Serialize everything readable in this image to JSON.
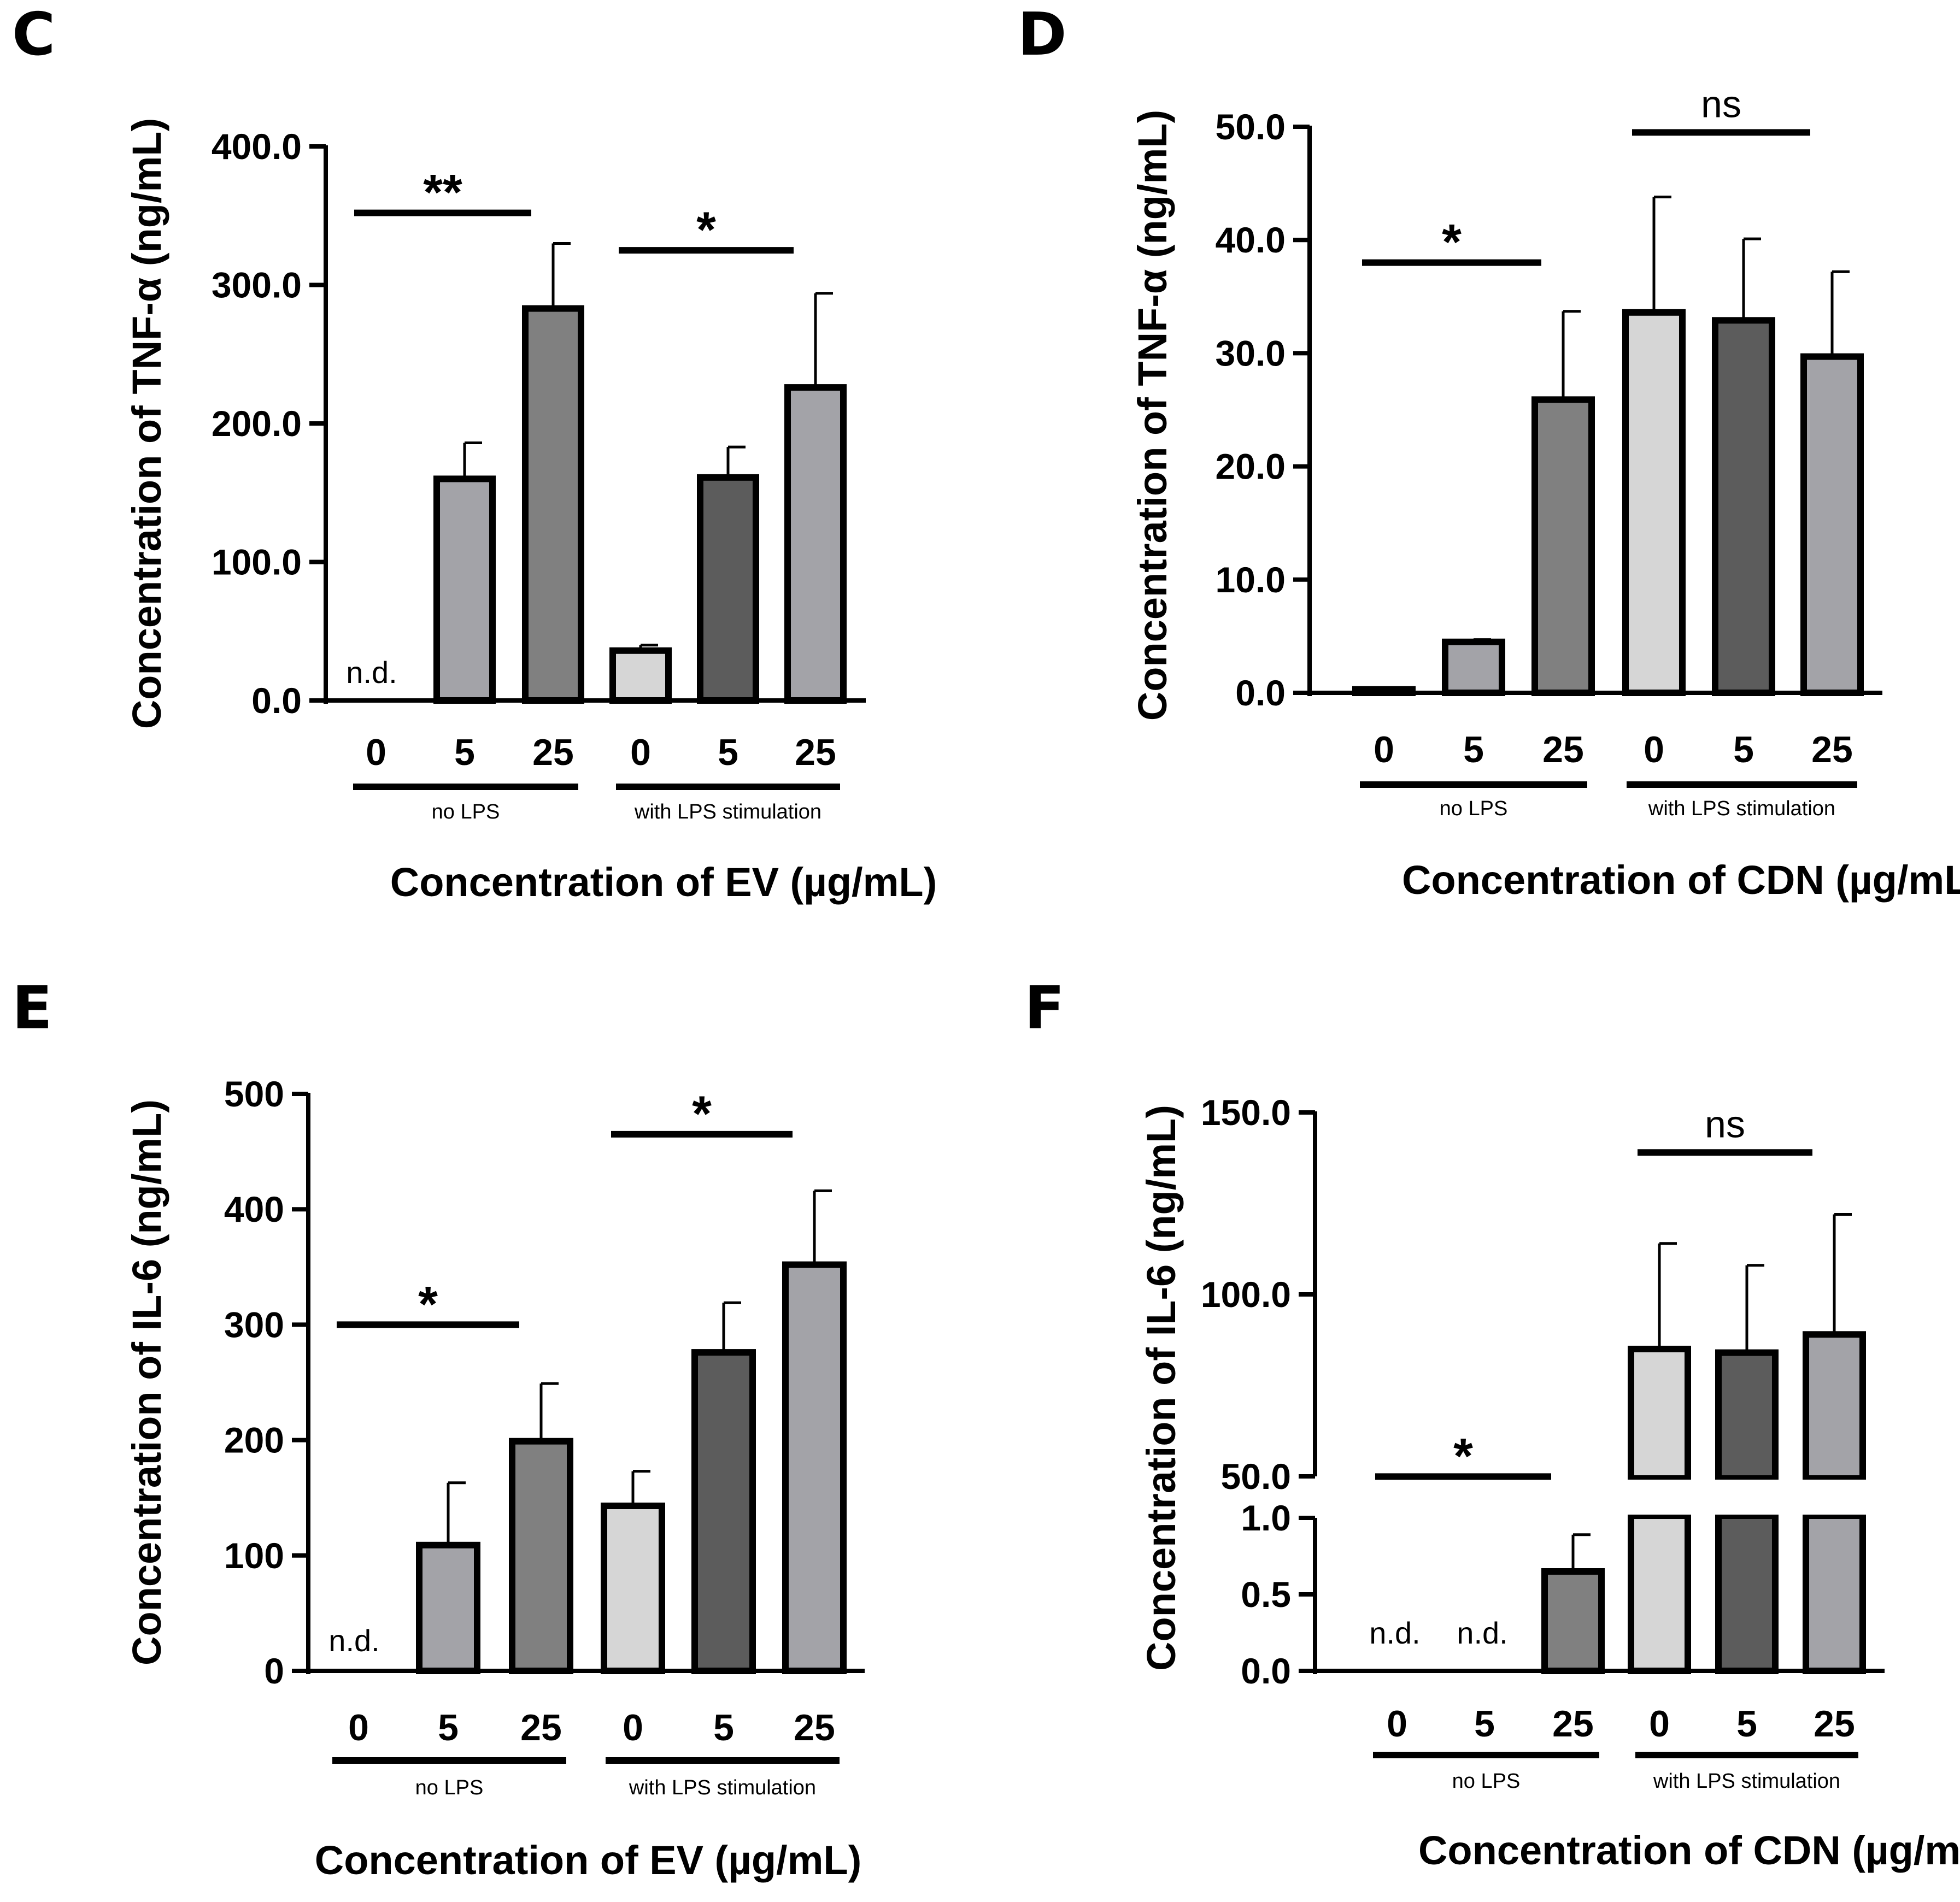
{
  "chart_data": [
    {
      "panel": "C",
      "type": "bar",
      "ylabel": "Concentration of TNF-α (ng/mL)",
      "xlabel": "Concentration of EV (µg/mL)",
      "ylim": [
        0,
        400
      ],
      "yticks": [
        "0.0",
        "100.0",
        "200.0",
        "300.0",
        "400.0"
      ],
      "ytick_values": [
        0,
        100,
        200,
        300,
        400
      ],
      "categories": [
        "0",
        "5",
        "25",
        "0",
        "5",
        "25"
      ],
      "values": [
        0,
        160,
        283,
        36,
        161,
        226
      ],
      "errors": [
        0,
        26,
        47,
        4,
        22,
        68
      ],
      "fills": [
        "#ffffff",
        "#a3a3a8",
        "#808080",
        "#d6d6d6",
        "#5c5c5c",
        "#a3a3a8"
      ],
      "nd_labels": [
        "n.d.",
        "",
        "",
        "",
        "",
        ""
      ],
      "groups": [
        {
          "label": "no LPS",
          "from": 0,
          "to": 2
        },
        {
          "label": "with LPS stimulation",
          "from": 3,
          "to": 5
        }
      ],
      "significance": [
        {
          "label": "**",
          "from": 0,
          "to": 2,
          "y": 352,
          "kind": "star"
        },
        {
          "label": "*",
          "from": 3,
          "to": 5,
          "y": 325,
          "kind": "star"
        }
      ]
    },
    {
      "panel": "D",
      "type": "bar",
      "ylabel": "Concentration of TNF-α (ng/mL)",
      "xlabel": "Concentration of CDN (µg/mL)",
      "ylim": [
        0,
        50
      ],
      "yticks": [
        "0.0",
        "10.0",
        "20.0",
        "30.0",
        "40.0",
        "50.0"
      ],
      "ytick_values": [
        0,
        10,
        20,
        30,
        40,
        50
      ],
      "categories": [
        "0",
        "5",
        "25",
        "0",
        "5",
        "25"
      ],
      "values": [
        0.3,
        4.5,
        25.9,
        33.6,
        32.9,
        29.7
      ],
      "errors": [
        0.1,
        0.2,
        7.8,
        10.2,
        7.2,
        7.5
      ],
      "fills": [
        "#ffffff",
        "#a3a3a8",
        "#808080",
        "#d6d6d6",
        "#5c5c5c",
        "#a3a3a8"
      ],
      "nd_labels": [
        "",
        "",
        "",
        "",
        "",
        ""
      ],
      "groups": [
        {
          "label": "no LPS",
          "from": 0,
          "to": 2
        },
        {
          "label": "with LPS stimulation",
          "from": 3,
          "to": 5
        }
      ],
      "significance": [
        {
          "label": "*",
          "from": 0,
          "to": 2,
          "y": 38,
          "kind": "star"
        },
        {
          "label": "ns",
          "from": 3,
          "to": 5,
          "y": 49.5,
          "kind": "ns"
        }
      ]
    },
    {
      "panel": "E",
      "type": "bar",
      "ylabel": "Concentration of IL-6 (ng/mL)",
      "xlabel": "Concentration of EV (µg/mL)",
      "ylim": [
        0,
        500
      ],
      "yticks": [
        "0",
        "100",
        "200",
        "300",
        "400",
        "500"
      ],
      "ytick_values": [
        0,
        100,
        200,
        300,
        400,
        500
      ],
      "categories": [
        "0",
        "5",
        "25",
        "0",
        "5",
        "25"
      ],
      "values": [
        0,
        109,
        199,
        143,
        276,
        352
      ],
      "errors": [
        0,
        54,
        50,
        30,
        43,
        64
      ],
      "fills": [
        "#ffffff",
        "#a3a3a8",
        "#808080",
        "#d6d6d6",
        "#5c5c5c",
        "#a3a3a8"
      ],
      "nd_labels": [
        "n.d.",
        "",
        "",
        "",
        "",
        ""
      ],
      "groups": [
        {
          "label": "no LPS",
          "from": 0,
          "to": 2
        },
        {
          "label": "with LPS stimulation",
          "from": 3,
          "to": 5
        }
      ],
      "significance": [
        {
          "label": "*",
          "from": 0,
          "to": 2,
          "y": 300,
          "kind": "star"
        },
        {
          "label": "*",
          "from": 3,
          "to": 5,
          "y": 465,
          "kind": "star"
        }
      ]
    },
    {
      "panel": "F",
      "type": "bar",
      "ylabel": "Concentration of IL-6 (ng/mL)",
      "xlabel": "Concentration of CDN (µg/mL)",
      "broken_axis": true,
      "ylim_lower": [
        0,
        1.0
      ],
      "ylim_upper": [
        50,
        150
      ],
      "yticks_lower": [
        "0.0",
        "0.5",
        "1.0"
      ],
      "ytick_values_lower": [
        0,
        0.5,
        1.0
      ],
      "yticks_upper": [
        "50.0",
        "100.0",
        "150.0"
      ],
      "ytick_values_upper": [
        50,
        100,
        150
      ],
      "categories": [
        "0",
        "5",
        "25",
        "0",
        "5",
        "25"
      ],
      "values": [
        0,
        0,
        0.65,
        85,
        84,
        89
      ],
      "errors": [
        0,
        0,
        0.24,
        29,
        24,
        33
      ],
      "fills": [
        "#ffffff",
        "#ffffff",
        "#808080",
        "#d6d6d6",
        "#5c5c5c",
        "#a3a3a8"
      ],
      "nd_labels": [
        "n.d.",
        "n.d.",
        "",
        "",
        "",
        ""
      ],
      "groups": [
        {
          "label": "no LPS",
          "from": 0,
          "to": 2
        },
        {
          "label": "with LPS stimulation",
          "from": 3,
          "to": 5
        }
      ],
      "significance": [
        {
          "label": "*",
          "from": 0,
          "to": 2,
          "y": 1.27,
          "scale": "lower",
          "kind": "star"
        },
        {
          "label": "ns",
          "from": 3,
          "to": 5,
          "y": 139,
          "scale": "upper",
          "kind": "ns"
        }
      ]
    }
  ]
}
